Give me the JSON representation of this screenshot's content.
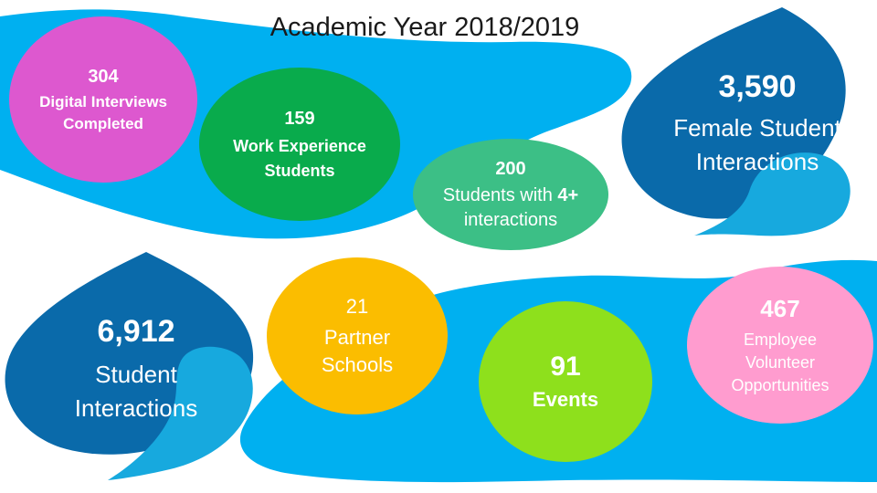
{
  "title": "Academic Year 2018/2019",
  "colors": {
    "water": "#00b0f0",
    "drop_dark": "#0a6aaa",
    "drop_light": "#17a9de",
    "pink": "#dd58cf",
    "green": "#09ab4c",
    "teal": "#3cbf86",
    "yellow": "#fbbd00",
    "lime": "#8ee01c",
    "light_pink": "#ff9ccf"
  },
  "stats": {
    "digital_interviews": {
      "value": "304",
      "lines": [
        "Digital Interviews",
        "Completed"
      ]
    },
    "work_experience": {
      "value": "159",
      "lines": [
        "Work Experience",
        "Students"
      ]
    },
    "students_4plus": {
      "value": "200",
      "line1": "Students with ",
      "line1_bold": "4+",
      "line2": "interactions"
    },
    "female_interactions": {
      "value": "3,590",
      "lines": [
        "Female Student",
        "Interactions"
      ]
    },
    "student_interactions": {
      "value": "6,912",
      "lines": [
        "Student",
        "Interactions"
      ]
    },
    "partner_schools": {
      "value": "21",
      "lines": [
        "Partner",
        "Schools"
      ]
    },
    "events": {
      "value": "91",
      "lines": [
        "Events"
      ]
    },
    "volunteer": {
      "value": "467",
      "lines": [
        "Employee",
        "Volunteer",
        "Opportunities"
      ]
    }
  }
}
